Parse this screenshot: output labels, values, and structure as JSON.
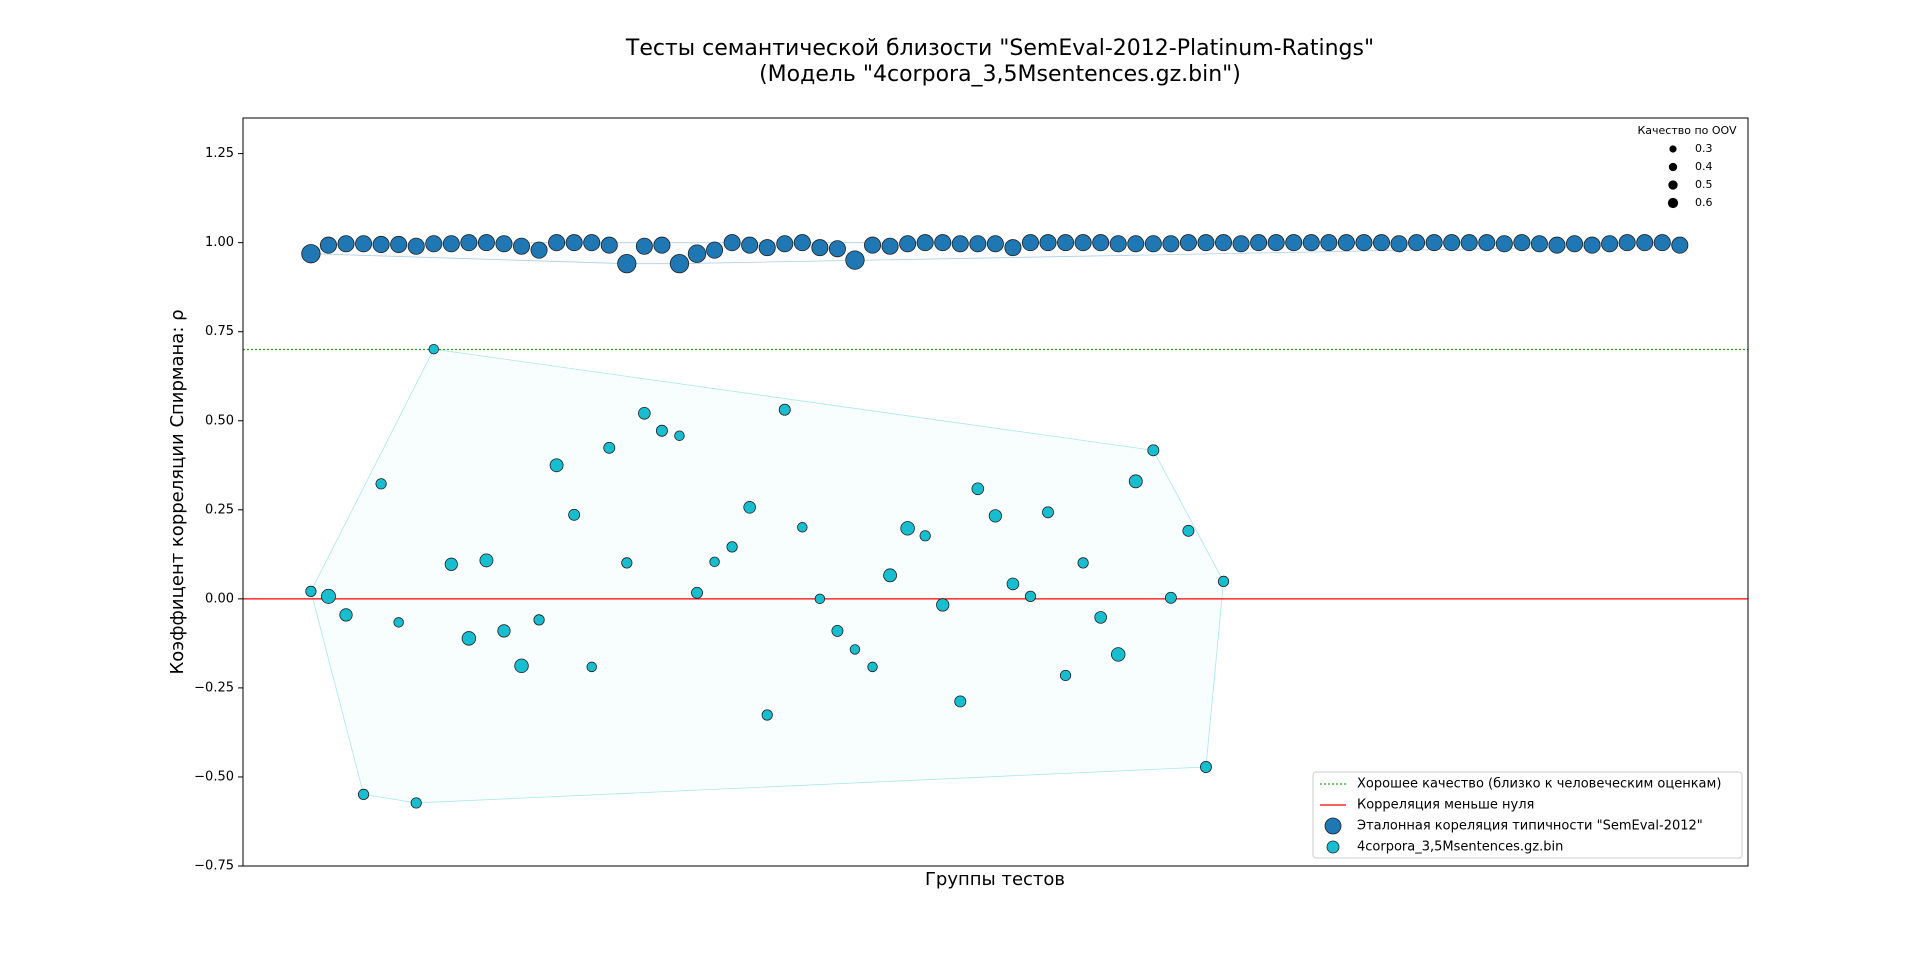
{
  "chart_data": {
    "type": "scatter",
    "title": "Тесты семантической близости \"SemEval-2012-Platinum-Ratings\"",
    "subtitle": "(Модель \"4corpora_3,5Msentences.gz.bin\")",
    "x_label": "Группы тестов",
    "y_label": "Коэффицент корреляции Спирмана: ρ",
    "categories": [
      null,
      null,
      null,
      null,
      null,
      null,
      null,
      null,
      null,
      null,
      null,
      null,
      null,
      null,
      null,
      null,
      null,
      null,
      null,
      null,
      null,
      null,
      null,
      null,
      null,
      null,
      null,
      null,
      null,
      null,
      null,
      null,
      null,
      null,
      null,
      null,
      null,
      null,
      null,
      null,
      null,
      null,
      null,
      null,
      null,
      null,
      null,
      null,
      null,
      null,
      null,
      null,
      null,
      null,
      null,
      null,
      null,
      null,
      null,
      null,
      null,
      null,
      null,
      null,
      null,
      null,
      null,
      null,
      null,
      null,
      null,
      null,
      null,
      null,
      null,
      null,
      null,
      null,
      null
    ],
    "ylim": [
      -0.75,
      1.35
    ],
    "yticks": [
      {
        "value": -0.75,
        "label": "−0.75"
      },
      {
        "value": -0.5,
        "label": "−0.50"
      },
      {
        "value": -0.25,
        "label": "−0.25"
      },
      {
        "value": 0,
        "label": "0.00"
      },
      {
        "value": 0.25,
        "label": "0.25"
      },
      {
        "value": 0.5,
        "label": "0.50"
      },
      {
        "value": 0.75,
        "label": "0.75"
      },
      {
        "value": 1,
        "label": "1.00"
      },
      {
        "value": 1.25,
        "label": "1.25"
      }
    ],
    "series": [
      {
        "name": "Эталонная кореляция типичности \"SemEval-2012\"",
        "color": "#1f77b4",
        "hull_color": "#1f77b4",
        "values": [
          0.969,
          0.993,
          0.997,
          0.997,
          0.995,
          0.995,
          0.99,
          0.997,
          0.997,
          1.0,
          1.0,
          0.997,
          0.99,
          0.979,
          1.0,
          1.0,
          1.0,
          0.993,
          0.941,
          0.99,
          0.993,
          0.941,
          0.969,
          0.979,
          1.0,
          0.993,
          0.986,
          0.997,
          1.0,
          0.986,
          0.983,
          0.951,
          0.993,
          0.99,
          0.997,
          1.0,
          1.0,
          0.997,
          0.997,
          0.997,
          0.986,
          1.0,
          1.0,
          1.0,
          1.0,
          1.0,
          0.997,
          0.997,
          0.997,
          0.997,
          1.0,
          1.0,
          1.0,
          0.997,
          1.0,
          1.0,
          1.0,
          1.0,
          1.0,
          1.0,
          1.0,
          1.0,
          0.997,
          1.0,
          1.0,
          1.0,
          1.0,
          1.0,
          0.997,
          1.0,
          0.997,
          0.993,
          0.997,
          0.993,
          0.997,
          1.0,
          1.0,
          1.0,
          0.993
        ],
        "sizes": [
          1.1,
          0.85,
          0.85,
          0.85,
          0.85,
          0.85,
          0.85,
          0.85,
          0.85,
          0.85,
          0.85,
          0.85,
          0.85,
          0.85,
          0.85,
          0.85,
          0.85,
          0.85,
          1.1,
          0.85,
          0.85,
          1.1,
          1.0,
          0.85,
          0.85,
          0.85,
          0.85,
          0.85,
          0.85,
          0.85,
          0.85,
          1.1,
          0.85,
          0.85,
          0.85,
          0.85,
          0.85,
          0.85,
          0.85,
          0.85,
          0.85,
          0.85,
          0.85,
          0.85,
          0.85,
          0.85,
          0.85,
          0.85,
          0.85,
          0.85,
          0.85,
          0.85,
          0.85,
          0.85,
          0.85,
          0.85,
          0.85,
          0.85,
          0.85,
          0.85,
          0.85,
          0.85,
          0.85,
          0.85,
          0.85,
          0.85,
          0.85,
          0.85,
          0.85,
          0.85,
          0.85,
          0.85,
          0.85,
          0.85,
          0.85,
          0.85,
          0.85,
          0.85,
          0.85
        ]
      },
      {
        "name": "4corpora_3,5Msentences.gz.bin",
        "color": "#17becf",
        "hull_color": "#17becf",
        "values": [
          0.021,
          0.007,
          -0.045,
          -0.549,
          0.323,
          -0.066,
          -0.573,
          0.701,
          0.097,
          -0.111,
          0.108,
          -0.09,
          -0.188,
          -0.059,
          0.375,
          0.236,
          -0.191,
          0.424,
          0.101,
          0.521,
          0.472,
          0.458,
          0.017,
          0.104,
          0.146,
          0.257,
          -0.326,
          0.531,
          0.201,
          0.0,
          -0.09,
          -0.142,
          -0.191,
          0.066,
          0.198,
          0.177,
          -0.017,
          -0.288,
          0.309,
          0.233,
          0.042,
          0.007,
          0.243,
          -0.215,
          0.101,
          -0.052,
          -0.156,
          0.33,
          0.417,
          0.003,
          0.191,
          -0.472,
          0.049,
          null,
          null,
          null,
          null,
          null,
          null,
          null,
          null,
          null,
          null,
          null,
          null,
          null,
          null,
          null,
          null,
          null,
          null,
          null,
          null,
          null,
          null,
          null,
          null,
          null,
          null
        ],
        "sizes": [
          0.35,
          0.65,
          0.5,
          0.35,
          0.35,
          0.3,
          0.35,
          0.3,
          0.5,
          0.6,
          0.55,
          0.5,
          0.6,
          0.35,
          0.55,
          0.4,
          0.3,
          0.4,
          0.35,
          0.45,
          0.4,
          0.3,
          0.4,
          0.3,
          0.35,
          0.45,
          0.35,
          0.4,
          0.3,
          0.3,
          0.4,
          0.3,
          0.3,
          0.55,
          0.6,
          0.35,
          0.5,
          0.4,
          0.45,
          0.5,
          0.45,
          0.35,
          0.4,
          0.35,
          0.35,
          0.45,
          0.6,
          0.55,
          0.4,
          0.4,
          0.4,
          0.4,
          0.35,
          null,
          null,
          null,
          null,
          null,
          null,
          null,
          null,
          null,
          null,
          null,
          null,
          null,
          null,
          null,
          null,
          null,
          null,
          null,
          null,
          null,
          null,
          null,
          null,
          null,
          null
        ]
      }
    ],
    "reference_lines": [
      {
        "value": 0.7,
        "label": "Хорошее качество (близко к человеческим оценкам)",
        "color": "#2ca02c",
        "style": "dotted"
      },
      {
        "value": 0,
        "label": "Корреляция меньше нуля",
        "color": "#ff0000",
        "style": "solid"
      }
    ],
    "size_legend": {
      "title": "Качество по OOV",
      "values": [
        0.3,
        0.4,
        0.5,
        0.6
      ]
    },
    "legend": "lower right"
  }
}
